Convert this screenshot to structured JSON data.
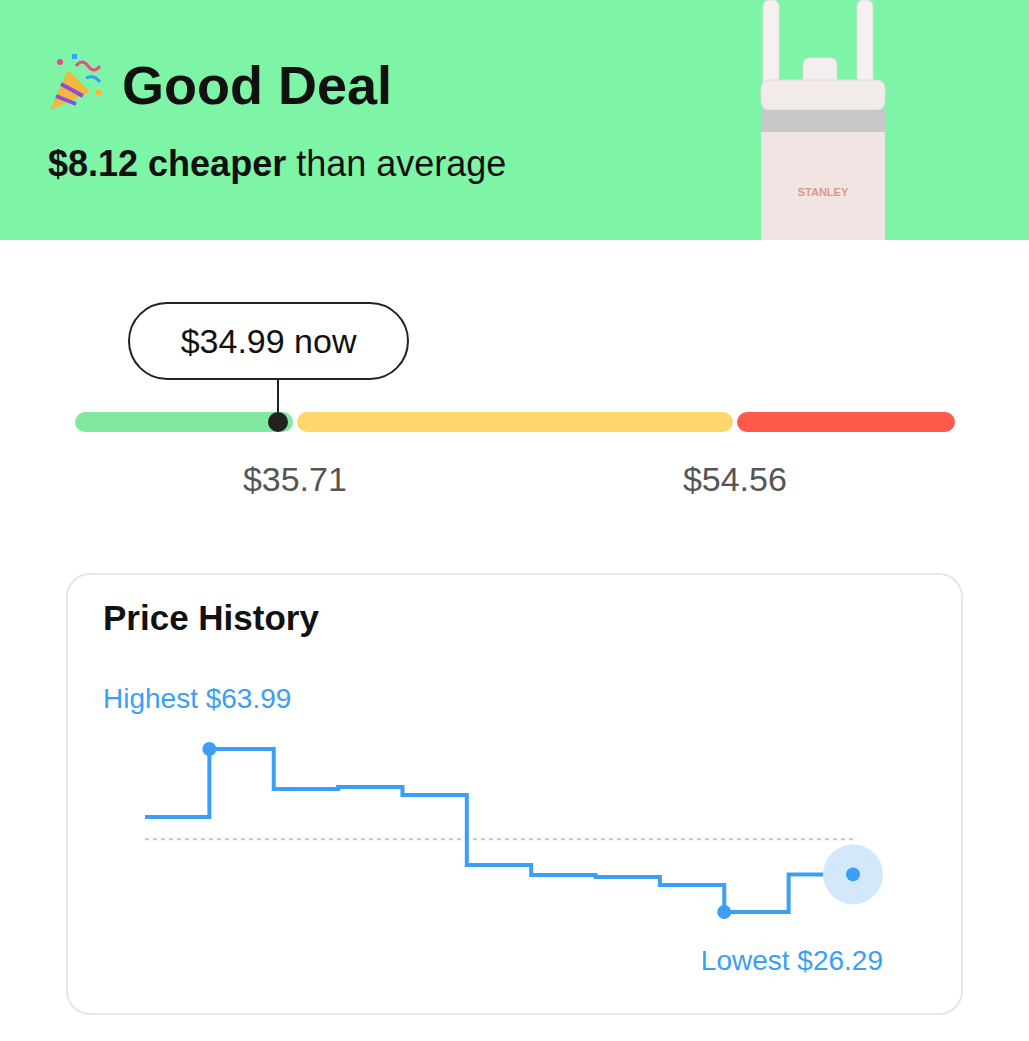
{
  "header": {
    "title": "Good Deal",
    "emphasis": "$8.12 cheaper",
    "text": "than average"
  },
  "product": {
    "brand": "STANLEY"
  },
  "price_range": {
    "now": 34.99,
    "now_label": "$34.99 now",
    "min": 26.29,
    "max": 63.99,
    "thresholds": [
      {
        "value": 35.71,
        "label": "$35.71"
      },
      {
        "value": 54.56,
        "label": "$54.56"
      }
    ],
    "colors": [
      "#80e89f",
      "#fdd76c",
      "#fd5a4b"
    ]
  },
  "chart_data": {
    "type": "line",
    "title": "Price History",
    "categories": [
      null,
      null,
      null,
      null,
      null,
      null,
      null,
      null,
      null,
      null,
      null,
      null
    ],
    "values": [
      48.26,
      63.99,
      54.74,
      55.2,
      53.35,
      37.16,
      34.85,
      34.39,
      32.54,
      26.29,
      34.99,
      34.99
    ],
    "color": "#3a9ff5",
    "line_style": "step",
    "ylim": [
      26.29,
      63.99
    ],
    "yticks": [],
    "tick_labels": false,
    "grid": false,
    "average": 43.11,
    "annotations": [
      "Highest $63.99",
      "Lowest $26.29"
    ]
  }
}
